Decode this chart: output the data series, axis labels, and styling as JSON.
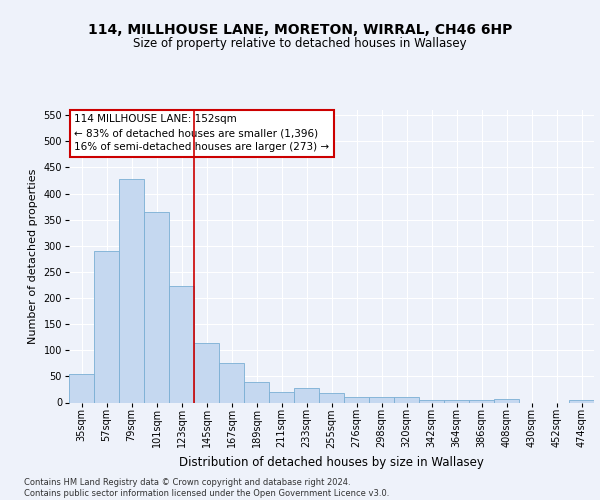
{
  "title": "114, MILLHOUSE LANE, MORETON, WIRRAL, CH46 6HP",
  "subtitle": "Size of property relative to detached houses in Wallasey",
  "xlabel": "Distribution of detached houses by size in Wallasey",
  "ylabel": "Number of detached properties",
  "categories": [
    "35sqm",
    "57sqm",
    "79sqm",
    "101sqm",
    "123sqm",
    "145sqm",
    "167sqm",
    "189sqm",
    "211sqm",
    "233sqm",
    "255sqm",
    "276sqm",
    "298sqm",
    "320sqm",
    "342sqm",
    "364sqm",
    "386sqm",
    "408sqm",
    "430sqm",
    "452sqm",
    "474sqm"
  ],
  "values": [
    55,
    290,
    428,
    365,
    224,
    113,
    76,
    40,
    20,
    28,
    18,
    10,
    10,
    10,
    5,
    4,
    4,
    6,
    0,
    0,
    4
  ],
  "bar_color": "#c5d8f0",
  "bar_edge_color": "#7aafd4",
  "annotation_text": "114 MILLHOUSE LANE: 152sqm\n← 83% of detached houses are smaller (1,396)\n16% of semi-detached houses are larger (273) →",
  "vline_x": 4.5,
  "vline_color": "#cc0000",
  "annotation_box_bg": "#ffffff",
  "annotation_box_edge": "#cc0000",
  "ylim": [
    0,
    560
  ],
  "yticks": [
    0,
    50,
    100,
    150,
    200,
    250,
    300,
    350,
    400,
    450,
    500,
    550
  ],
  "footer": "Contains HM Land Registry data © Crown copyright and database right 2024.\nContains public sector information licensed under the Open Government Licence v3.0.",
  "bg_color": "#eef2fa",
  "grid_color": "#ffffff",
  "title_fontsize": 10,
  "subtitle_fontsize": 8.5,
  "ylabel_fontsize": 8,
  "xlabel_fontsize": 8.5,
  "tick_fontsize": 7,
  "annot_fontsize": 7.5,
  "footer_fontsize": 6
}
